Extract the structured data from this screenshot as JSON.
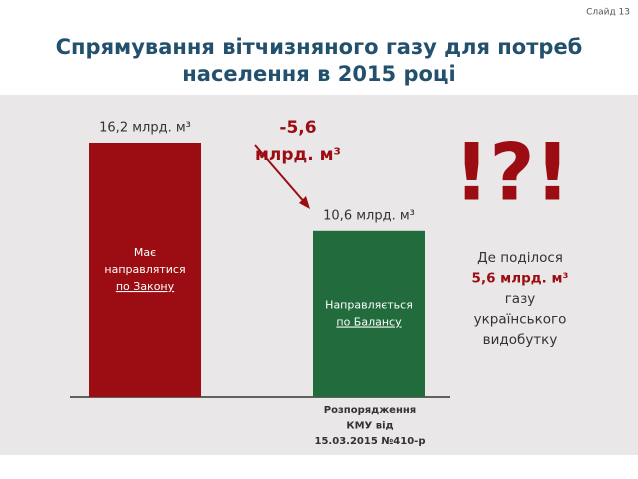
{
  "slide_label": "Слайд 13",
  "chart_data": {
    "type": "bar",
    "title": [
      "Спрямування вітчизняного газу для потреб",
      "населення в 2015 році"
    ],
    "categories": [
      [
        "Має",
        "направлятися",
        "по Закону"
      ],
      [
        "Направляється",
        "по Балансу"
      ]
    ],
    "values": [
      16.2,
      10.6
    ],
    "value_labels": [
      "16,2 млрд. м³",
      "10,6 млрд. м³"
    ],
    "colors": [
      "#9b0d12",
      "#226b3d"
    ],
    "change_label": [
      "-5,6",
      "млрд. м³"
    ],
    "note": [
      "Розпорядження",
      "КМУ від",
      "15.03.2015 №410-р"
    ]
  },
  "callout": {
    "mark": "!?!",
    "lines": [
      "Де поділося",
      "5,6 млрд. м³",
      "газу",
      "українського",
      "видобутку"
    ]
  }
}
